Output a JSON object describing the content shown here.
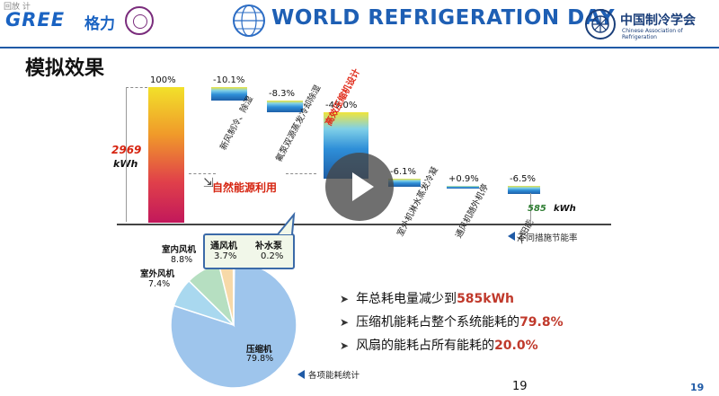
{
  "header": {
    "corner_tag": "回放 计",
    "gree_logo": "GREE",
    "gree_cn": "格力",
    "wrd_title": "WORLD REFRIGERATION DAY",
    "car_cn": "中国制冷学会",
    "car_en": "Chinese Association of Refrigeration",
    "icons": [
      "gree-logo-icon",
      "university-seal-icon",
      "wrd-globe-icon",
      "car-emblem-icon"
    ]
  },
  "slide": {
    "title": "模拟效果",
    "total_value": "2969",
    "total_unit": "kWh",
    "final_value": "585",
    "final_unit": "kWh",
    "natural_energy_label": "自然能源利用",
    "compressor_overlay": "高效压缩机设计",
    "legend_note": "不同措施节能率",
    "chart_data": {
      "type": "bar",
      "subtype": "waterfall",
      "bars": [
        {
          "label": "",
          "value_label": "100%",
          "value": 100
        },
        {
          "label": "新风制冷、除湿",
          "value_label": "-10.1%",
          "value": -10.1
        },
        {
          "label": "氟泵双源蒸发冷却除湿",
          "value_label": "-8.3%",
          "value": -8.3
        },
        {
          "label": "",
          "value_label": "-49.0%",
          "value": -49.0
        },
        {
          "label": "室外机淋水蒸发冷凝",
          "value_label": "-6.1%",
          "value": -6.1
        },
        {
          "label": "通风机随外机停",
          "value_label": "+0.9%",
          "value": 0.9
        },
        {
          "label": "太阳能",
          "value_label": "-6.5%",
          "value": -6.5
        }
      ],
      "colors": {
        "total_top": "#f2e12a",
        "total_bottom": "#c2185b",
        "saving": "#2f8fd8",
        "saving_top": "#f0e53a"
      }
    },
    "callout": {
      "items": [
        {
          "name": "通风机",
          "value": "3.7%"
        },
        {
          "name": "补水泵",
          "value": "0.2%"
        }
      ]
    },
    "pie": {
      "legend": "各项能耗统计",
      "slices": [
        {
          "name": "压缩机",
          "value": "79.8%",
          "percent": 79.8,
          "color": "#9ec5ec"
        },
        {
          "name": "室外风机",
          "value": "7.4%",
          "percent": 7.4,
          "color": "#a9d8ef"
        },
        {
          "name": "室内风机",
          "value": "8.8%",
          "percent": 8.8,
          "color": "#b6dfc1"
        },
        {
          "name": "通风机",
          "value": "3.7%",
          "percent": 3.7,
          "color": "#f7d9a8"
        },
        {
          "name": "补水泵",
          "value": "0.2%",
          "percent": 0.2,
          "color": "#f2c9a3"
        }
      ]
    },
    "bullets": [
      {
        "text": "年总耗电量减少到",
        "highlight": "585kWh"
      },
      {
        "text": "压缩机能耗占整个系统能耗的",
        "highlight": "79.8%"
      },
      {
        "text": "风扇的能耗占所有能耗的",
        "highlight": "20.0%"
      }
    ],
    "page_number": "19",
    "page_number_corner": "19"
  }
}
